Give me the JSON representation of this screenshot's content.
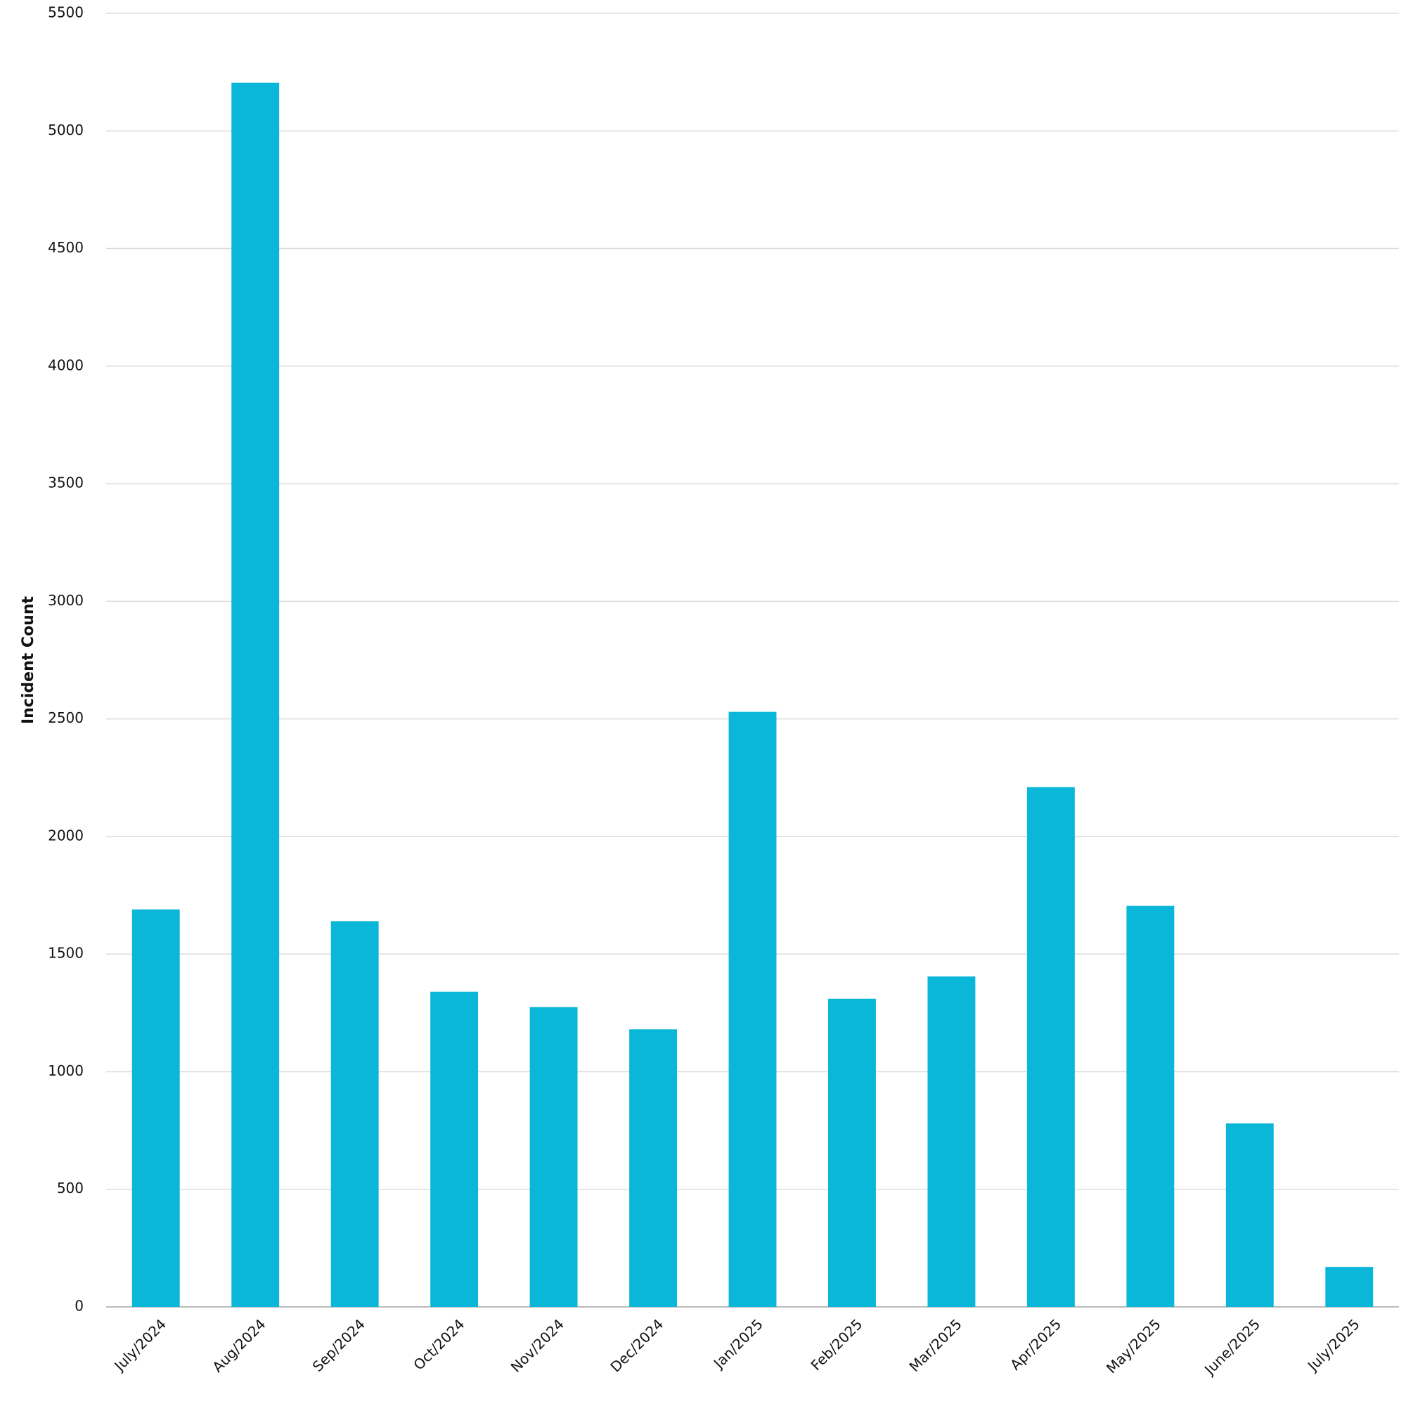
{
  "chart_data": {
    "type": "bar",
    "y_label": "Incident Count",
    "categories": [
      "July/2024",
      "Aug/2024",
      "Sep/2024",
      "Oct/2024",
      "Nov/2024",
      "Dec/2024",
      "Jan/2025",
      "Feb/2025",
      "Mar/2025",
      "Apr/2025",
      "May/2025",
      "June/2025",
      "July/2025"
    ],
    "values": [
      1690,
      5205,
      1640,
      1340,
      1275,
      1180,
      2530,
      1310,
      1405,
      2210,
      1705,
      780,
      170
    ],
    "color": "#0bb7d9",
    "ylim": [
      0,
      5500
    ],
    "yticks": [
      0,
      500,
      1000,
      1500,
      2000,
      2500,
      3000,
      3500,
      4000,
      4500,
      5000,
      5500
    ],
    "grid": true
  }
}
